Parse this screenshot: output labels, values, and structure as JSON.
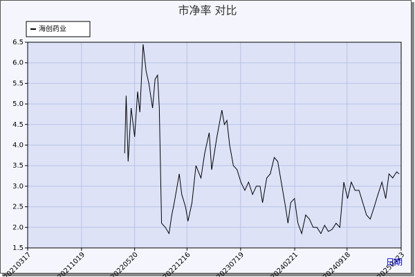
{
  "chart_data": {
    "type": "line",
    "title": "市净率  对比",
    "x_label": "日期",
    "legend_position": "upper left",
    "grid": true,
    "xlim": [
      "20210317",
      "20250423"
    ],
    "xticks": [
      "20210317",
      "20211019",
      "20220520",
      "20221216",
      "20230719",
      "20240221",
      "20240918",
      "20250423"
    ],
    "ylim": [
      1.5,
      6.5
    ],
    "yticks": [
      1.5,
      2.0,
      2.5,
      3.0,
      3.5,
      4.0,
      4.5,
      5.0,
      5.5,
      6.0,
      6.5
    ],
    "x": [
      "20220410",
      "20220416",
      "20220424",
      "20220506",
      "20220520",
      "20220601",
      "20220610",
      "20220623",
      "20220705",
      "20220716",
      "20220731",
      "20220810",
      "20220820",
      "20220827",
      "20220905",
      "20220920",
      "20221005",
      "20221016",
      "20221026",
      "20221115",
      "20221125",
      "20221210",
      "20221220",
      "20230105",
      "20230121",
      "20230210",
      "20230225",
      "20230315",
      "20230325",
      "20230415",
      "20230505",
      "20230515",
      "20230525",
      "20230605",
      "20230620",
      "20230705",
      "20230720",
      "20230805",
      "20230820",
      "20230905",
      "20230920",
      "20231005",
      "20231015",
      "20231101",
      "20231115",
      "20231201",
      "20231215",
      "20240101",
      "20240115",
      "20240125",
      "20240205",
      "20240220",
      "20240305",
      "20240320",
      "20240405",
      "20240420",
      "20240505",
      "20240520",
      "20240605",
      "20240620",
      "20240705",
      "20240720",
      "20240805",
      "20240820",
      "20240905",
      "20240920",
      "20241005",
      "20241020",
      "20241105",
      "20241120",
      "20241205",
      "20241220",
      "20250105",
      "20250120",
      "20250205",
      "20250220",
      "20250305",
      "20250320",
      "20250405",
      "20250415"
    ],
    "series": [
      {
        "name": "海创药业",
        "color": "#000000",
        "values": [
          3.8,
          5.2,
          3.6,
          4.9,
          4.2,
          5.3,
          4.8,
          6.45,
          5.8,
          5.5,
          4.9,
          5.6,
          5.7,
          4.9,
          2.1,
          2.0,
          1.85,
          2.3,
          2.6,
          3.3,
          2.8,
          2.5,
          2.15,
          2.6,
          3.5,
          3.2,
          3.8,
          4.3,
          3.4,
          4.2,
          4.85,
          4.5,
          4.6,
          4.0,
          3.5,
          3.4,
          3.1,
          2.9,
          3.1,
          2.8,
          3.0,
          3.0,
          2.6,
          3.2,
          3.3,
          3.7,
          3.6,
          3.0,
          2.5,
          2.1,
          2.6,
          2.7,
          2.1,
          1.85,
          2.3,
          2.2,
          2.0,
          2.0,
          1.85,
          2.05,
          1.9,
          1.95,
          2.1,
          2.0,
          3.1,
          2.7,
          3.1,
          2.9,
          2.9,
          2.6,
          2.3,
          2.2,
          2.5,
          2.8,
          3.1,
          2.7,
          3.3,
          3.2,
          3.35,
          3.3
        ]
      }
    ]
  }
}
